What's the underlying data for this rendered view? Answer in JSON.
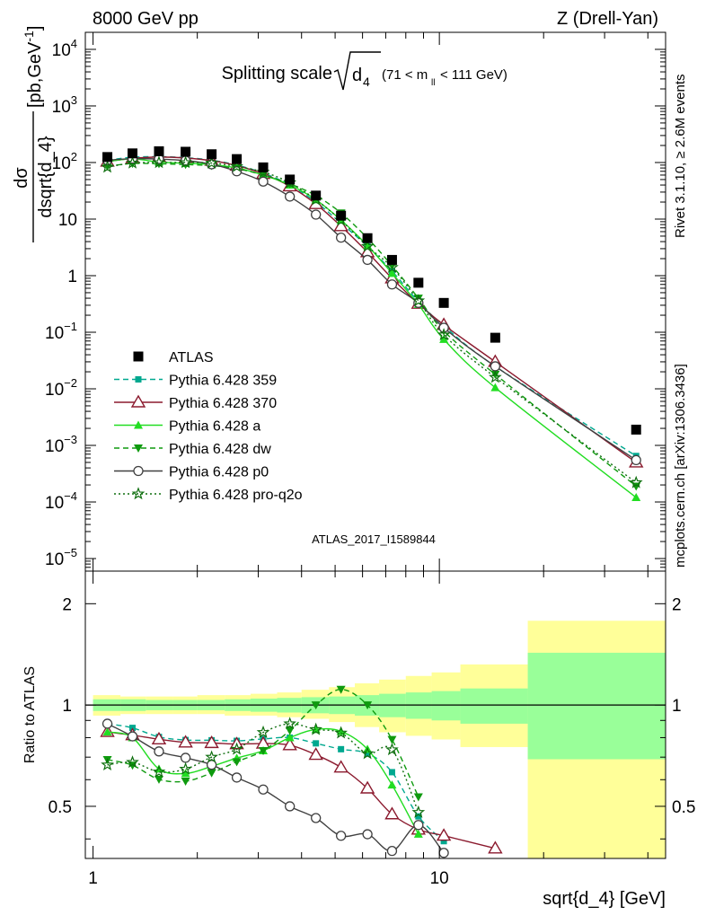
{
  "header": {
    "left": "8000 GeV pp",
    "right": "Z (Drell-Yan)"
  },
  "title": {
    "main": "Splitting scale",
    "sym": "d",
    "sym_sub": "4",
    "range_a": "(71 < m",
    "range_sub": "ll",
    "range_b": " < 111 GeV)"
  },
  "ylabel": {
    "num": "dσ",
    "den": "dsqrt{d_4}",
    "unit_a": "[pb,GeV",
    "unit_sup": "-1",
    "unit_b": "]"
  },
  "ratio_ylabel": "Ratio to ATLAS",
  "xlabel": "sqrt{d_4} [GeV]",
  "side_top": "Rivet 3.1.10, ≥ 2.6M events",
  "side_bottom": "mcplots.cern.ch [arXiv:1306.3436]",
  "watermark": "ATLAS_2017_I1589844",
  "colors": {
    "atlas": "#000000",
    "p359": "#00a88f",
    "p370": "#8b1a2e",
    "pa": "#22dd22",
    "pdw": "#0e9a0e",
    "pp0": "#404040",
    "pq2o": "#0e6e0e",
    "band_yellow": "#ffff99",
    "band_green": "#99ff99"
  },
  "main_ticks": {
    "log_labels": [
      {
        "v": 1e-05,
        "base": "10",
        "exp": "−5"
      },
      {
        "v": 0.0001,
        "base": "10",
        "exp": "−4"
      },
      {
        "v": 0.001,
        "base": "10",
        "exp": "−3"
      },
      {
        "v": 0.01,
        "base": "10",
        "exp": "−2"
      },
      {
        "v": 0.1,
        "base": "10",
        "exp": "−1"
      },
      {
        "v": 1,
        "base": "1",
        "exp": ""
      },
      {
        "v": 10,
        "base": "10",
        "exp": ""
      },
      {
        "v": 100,
        "base": "10",
        "exp": "2"
      },
      {
        "v": 1000,
        "base": "10",
        "exp": "3"
      },
      {
        "v": 10000,
        "base": "10",
        "exp": "4"
      }
    ]
  },
  "ratio_ticks": {
    "labels": [
      {
        "v": 0.5,
        "text": "0.5"
      },
      {
        "v": 1,
        "text": "1"
      },
      {
        "v": 2,
        "text": "2"
      }
    ]
  },
  "x_ticks": {
    "labels": [
      {
        "v": 1,
        "text": "1"
      },
      {
        "v": 10,
        "text": "10"
      }
    ]
  },
  "chart_data": {
    "type": "scatter",
    "title": "Splitting scale √d4 (71 < m_ll < 111 GeV)",
    "xlabel": "sqrt{d_4} [GeV]",
    "ylabel": "dσ/dsqrt{d_4} [pb,GeV^-1]",
    "xscale": "log",
    "yscale": "log",
    "xlim": [
      0.95,
      45
    ],
    "ylim": [
      6e-06,
      20000
    ],
    "ratio_ylim": [
      0.35,
      2.5
    ],
    "ratio_yscale": "log",
    "legend_position": "middle-left",
    "x": [
      1.1,
      1.3,
      1.55,
      1.85,
      2.2,
      2.6,
      3.1,
      3.7,
      4.4,
      5.2,
      6.2,
      7.3,
      8.7,
      10.3,
      14.5,
      37.0
    ],
    "series": [
      {
        "name": "ATLAS",
        "key": "atlas",
        "marker": "square",
        "line": "none",
        "values": [
          125,
          145,
          158,
          155,
          140,
          115,
          82,
          50,
          26,
          11.5,
          4.6,
          1.9,
          0.75,
          0.33,
          0.08,
          0.0019
        ]
      },
      {
        "name": "Pythia 6.428 359",
        "key": "p359",
        "marker": "square-small",
        "line": "dashed",
        "values": [
          110,
          124,
          127,
          122,
          110,
          90,
          65,
          40,
          20,
          8.5,
          3.3,
          1.2,
          0.35,
          0.13,
          0.025,
          0.00065
        ]
      },
      {
        "name": "Pythia 6.428 370",
        "key": "p370",
        "marker": "triangle-open",
        "line": "solid",
        "values": [
          104,
          118,
          125,
          120,
          108,
          88,
          63,
          38,
          18.5,
          7.5,
          2.6,
          0.9,
          0.32,
          0.135,
          0.03,
          0.0005
        ]
      },
      {
        "name": "Pythia 6.428 a",
        "key": "pa",
        "marker": "triangle",
        "line": "solid",
        "values": [
          104,
          116,
          102,
          97,
          92,
          80,
          60,
          40,
          22,
          9.6,
          3.4,
          1.1,
          0.31,
          0.075,
          0.0105,
          0.00012
        ]
      },
      {
        "name": "Pythia 6.428 dw",
        "key": "pdw",
        "marker": "triangle-down",
        "line": "dashed",
        "values": [
          86,
          96,
          95,
          92,
          88,
          78,
          60,
          42,
          26,
          12.8,
          4.6,
          1.5,
          0.4,
          0.105,
          0.018,
          0.00019
        ]
      },
      {
        "name": "Pythia 6.428 p0",
        "key": "pp0",
        "marker": "circle-open",
        "line": "solid",
        "values": [
          110,
          117,
          115,
          108,
          93,
          70,
          46,
          25,
          12,
          4.7,
          1.9,
          0.7,
          0.33,
          0.12,
          0.025,
          0.00055
        ]
      },
      {
        "name": "Pythia 6.428 pro-q2o",
        "key": "pq2o",
        "marker": "star-open",
        "line": "dotted",
        "values": [
          83,
          98,
          100,
          100,
          98,
          85,
          68,
          44,
          22,
          9.5,
          3.3,
          1.4,
          0.36,
          0.09,
          0.016,
          0.00022
        ]
      }
    ],
    "ratio_band": {
      "edges": [
        1.0,
        1.2,
        1.42,
        1.7,
        2.0,
        2.4,
        2.85,
        3.4,
        4.0,
        4.8,
        5.7,
        6.7,
        8.0,
        9.5,
        11.5,
        18.0,
        45.0
      ],
      "yellow_lo": [
        0.93,
        0.94,
        0.94,
        0.94,
        0.94,
        0.93,
        0.93,
        0.92,
        0.91,
        0.89,
        0.86,
        0.83,
        0.81,
        0.79,
        0.75,
        0.33
      ],
      "yellow_hi": [
        1.07,
        1.06,
        1.06,
        1.06,
        1.07,
        1.07,
        1.08,
        1.09,
        1.11,
        1.13,
        1.16,
        1.19,
        1.22,
        1.25,
        1.32,
        1.78
      ],
      "green_lo": [
        0.96,
        0.96,
        0.965,
        0.965,
        0.965,
        0.96,
        0.955,
        0.95,
        0.945,
        0.94,
        0.93,
        0.92,
        0.91,
        0.9,
        0.88,
        0.69
      ],
      "green_hi": [
        1.04,
        1.04,
        1.035,
        1.035,
        1.035,
        1.04,
        1.045,
        1.05,
        1.055,
        1.06,
        1.07,
        1.08,
        1.09,
        1.1,
        1.12,
        1.43
      ]
    }
  }
}
